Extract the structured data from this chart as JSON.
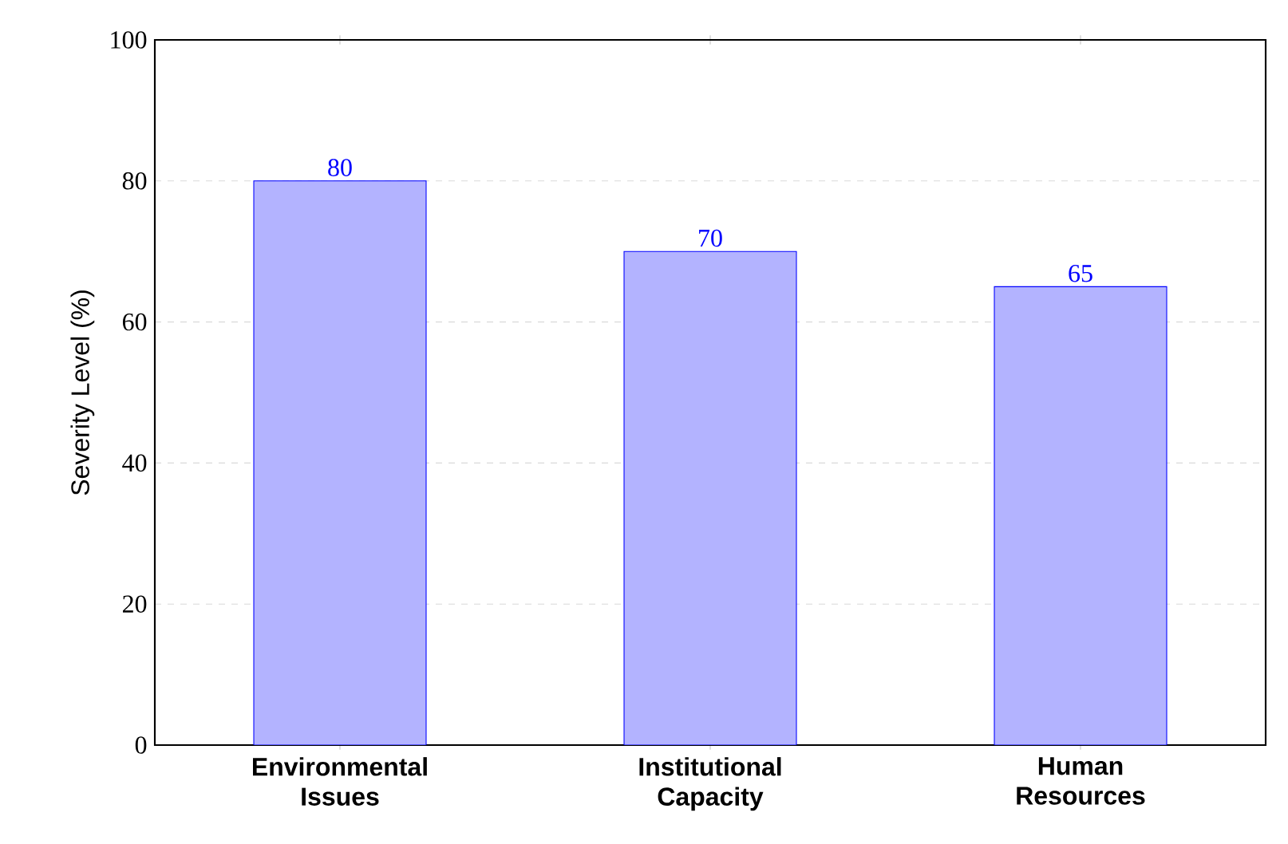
{
  "chart_data": {
    "type": "bar",
    "ylabel": "Severity Level (%)",
    "categories": [
      "Environmental Issues",
      "Institutional Capacity",
      "Human Resources"
    ],
    "values": [
      80,
      70,
      65
    ],
    "color": "#b3b3ff",
    "ylim": [
      0,
      100
    ],
    "yticks": [
      0,
      20,
      40,
      60,
      80,
      100
    ],
    "grid": "y",
    "data_labels": true
  }
}
